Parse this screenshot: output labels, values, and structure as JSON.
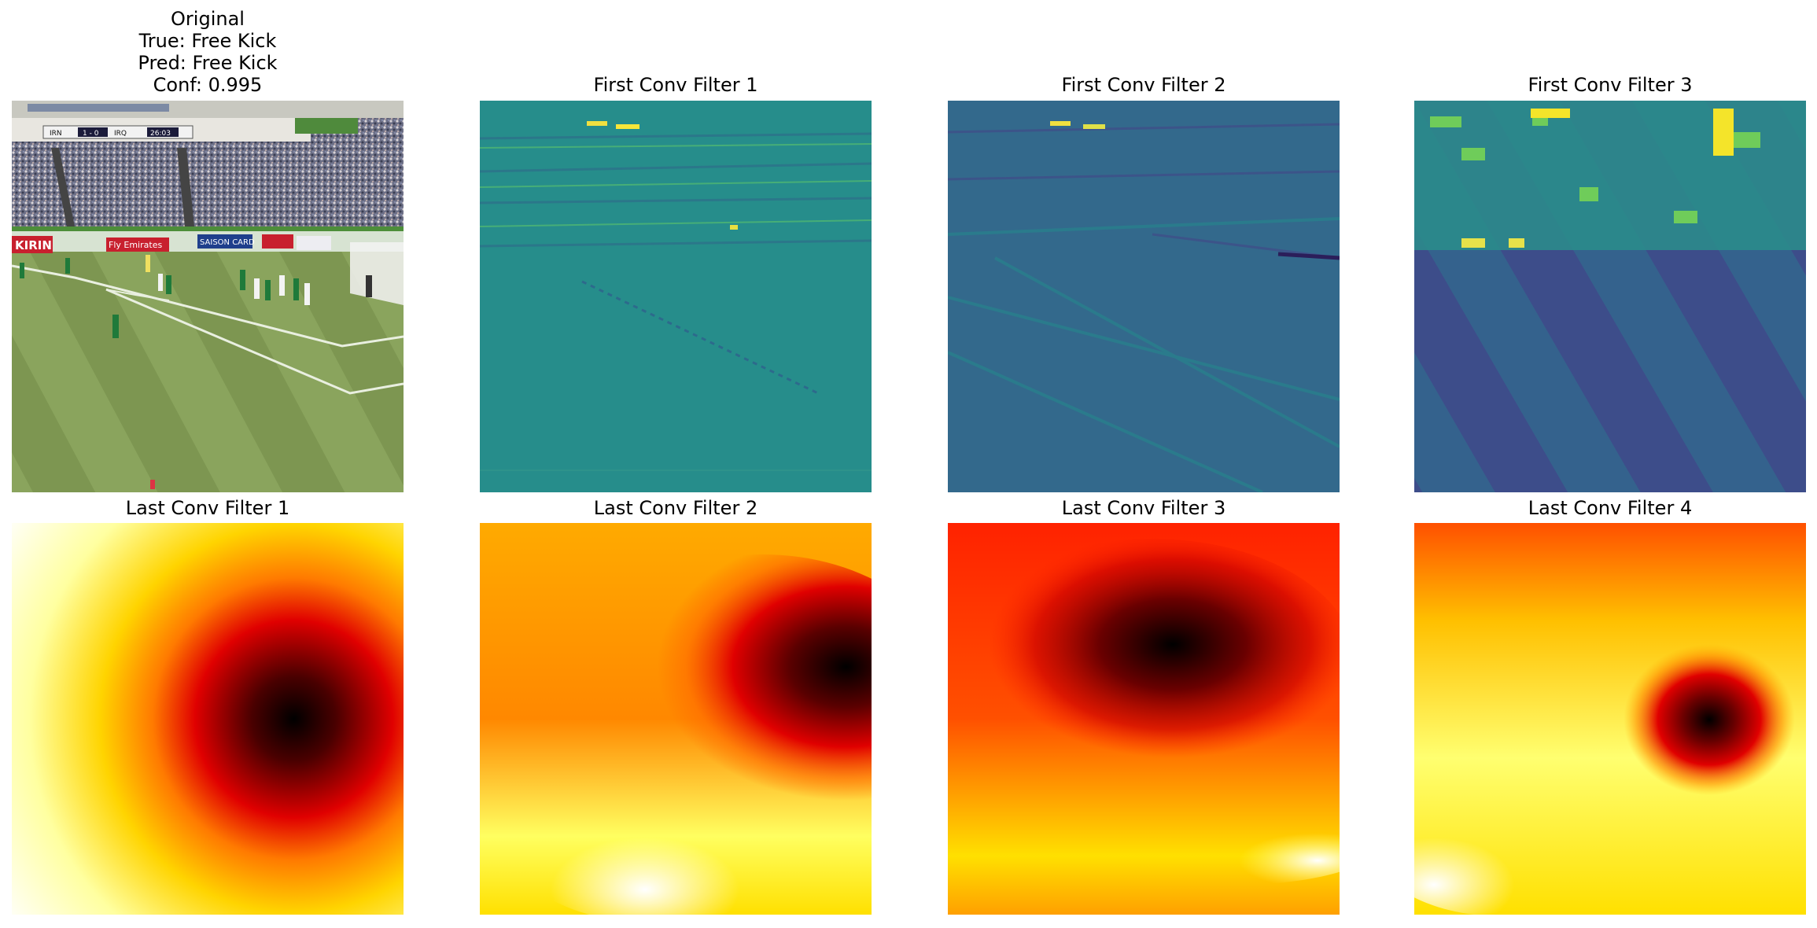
{
  "figure": {
    "original": {
      "title_lines": [
        "Original",
        "True: Free Kick",
        "Pred: Free Kick",
        "Conf: 0.995"
      ],
      "scene": {
        "banner_text": "KIRIN",
        "board_text": "Fly Emirates",
        "board_text_2": "SAISON CARD",
        "scoreboard": [
          "IRN",
          "1 - 0",
          "IRQ",
          "26:03"
        ]
      }
    },
    "first_conv": [
      {
        "title": "First Conv Filter 1"
      },
      {
        "title": "First Conv Filter 2"
      },
      {
        "title": "First Conv Filter 3"
      }
    ],
    "last_conv": [
      {
        "title": "Last Conv Filter 1"
      },
      {
        "title": "Last Conv Filter 2"
      },
      {
        "title": "Last Conv Filter 3"
      },
      {
        "title": "Last Conv Filter 4"
      }
    ],
    "colormaps": {
      "first_conv": "viridis",
      "last_conv": "hot"
    }
  }
}
